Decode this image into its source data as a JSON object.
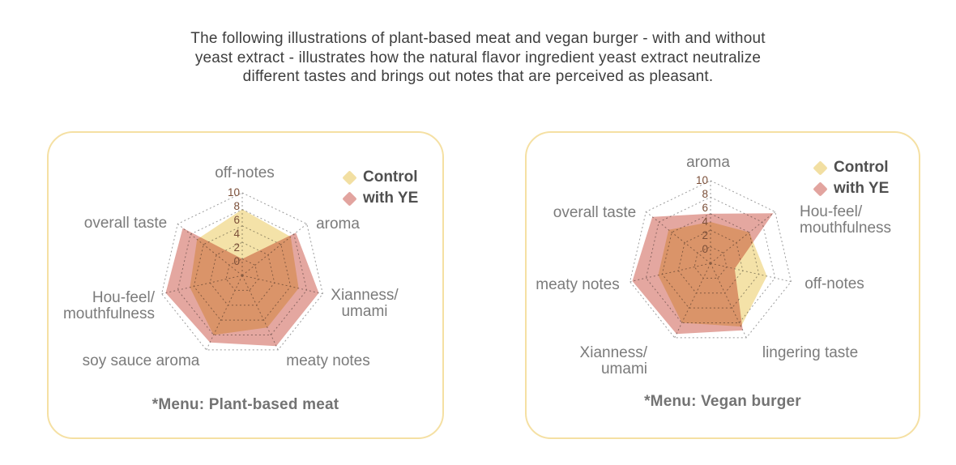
{
  "title": {
    "line1": "The following illustrations of plant-based meat and vegan burger - with and without",
    "line2": "yeast extract - illustrates how the natural flavor ingredient yeast extract neutralize",
    "line3": "different tastes and brings out notes that are perceived as pleasant."
  },
  "legend": {
    "control_label": "Control",
    "with_ye_label": "with YE"
  },
  "colors": {
    "control_fill": "#F4E2A8",
    "with_ye_fill": "#E4A7A0",
    "overlap": "#DA966B",
    "card_border": "#F5E0A3",
    "grid_line": "#9B9B9B",
    "tick_text": "#7B4F38",
    "axis_label_text": "#7B7B7B",
    "legend_text": "#4F4F4F",
    "caption_text": "#737373",
    "title_text": "#3E3E3E"
  },
  "chart_data": [
    {
      "type": "radar",
      "caption": "*Menu: Plant-based meat",
      "scale": {
        "min": 0,
        "max": 10,
        "ticks": [
          0,
          2,
          4,
          6,
          8,
          10
        ]
      },
      "categories": [
        "off-notes",
        "aroma",
        "Xianness/umami",
        "meaty notes",
        "soy sauce aroma",
        "Hou-feel/mouthfulness",
        "overall taste"
      ],
      "category_lines": [
        [
          "off-notes"
        ],
        [
          "aroma"
        ],
        [
          "Xianness/",
          "umami"
        ],
        [
          "meaty notes"
        ],
        [
          "soy sauce aroma"
        ],
        [
          "Hou-feel/",
          "mouthfulness"
        ],
        [
          "overall taste"
        ]
      ],
      "series": [
        {
          "name": "Control",
          "color": "#F4E2A8",
          "values": [
            8,
            7.5,
            7,
            7,
            8,
            6.5,
            7
          ]
        },
        {
          "name": "with YE",
          "color": "#E4A7A0",
          "values": [
            2,
            8.3,
            9.5,
            9.5,
            9,
            9.5,
            9.2
          ]
        }
      ]
    },
    {
      "type": "radar",
      "caption": "*Menu: Vegan burger",
      "scale": {
        "min": 0,
        "max": 10,
        "ticks": [
          0,
          2,
          4,
          6,
          8,
          10
        ]
      },
      "categories": [
        "aroma",
        "Hou-feel/mouthfulness",
        "off-notes",
        "lingering taste",
        "Xianness/umami",
        "meaty notes",
        "overall taste"
      ],
      "category_lines": [
        [
          "aroma"
        ],
        [
          "Hou-feel/",
          "mouthfulness"
        ],
        [
          "off-notes"
        ],
        [
          "lingering taste"
        ],
        [
          "Xianness/",
          "umami"
        ],
        [
          "meaty notes"
        ],
        [
          "overall taste"
        ]
      ],
      "series": [
        {
          "name": "Control",
          "color": "#F4E2A8",
          "values": [
            5,
            6,
            7,
            8.5,
            8,
            6.5,
            6.5
          ]
        },
        {
          "name": "with YE",
          "color": "#E4A7A0",
          "values": [
            6,
            9.7,
            3,
            9,
            9.5,
            9.7,
            9
          ]
        }
      ]
    }
  ]
}
